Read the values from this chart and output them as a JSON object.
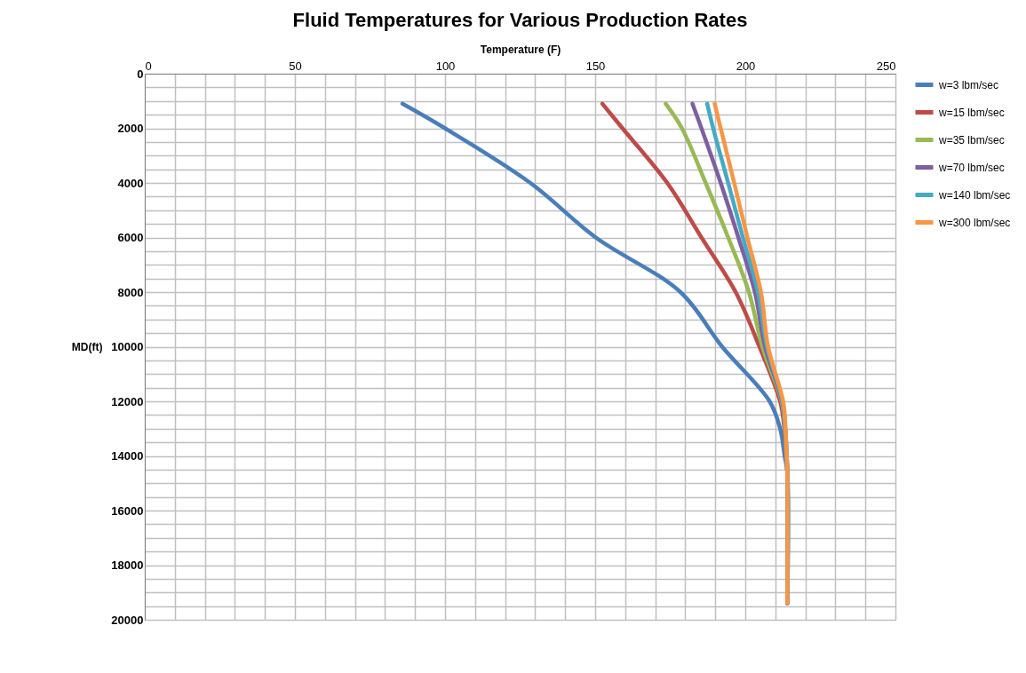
{
  "chart_data": {
    "type": "line",
    "title": "Fluid Temperatures for Various Production Rates",
    "xlabel": "Temperature (F)",
    "ylabel": "MD(ft)",
    "xlim": [
      0,
      250
    ],
    "xticks": [
      0,
      {
        "value": 10,
        "label": null
      },
      {
        "value": 20,
        "label": null
      },
      {
        "value": 30,
        "label": null
      },
      {
        "value": 40,
        "label": null
      },
      50,
      {
        "value": 60,
        "label": null
      },
      {
        "value": 70,
        "label": null
      },
      {
        "value": 80,
        "label": null
      },
      {
        "value": 90,
        "label": null
      },
      100,
      {
        "value": 110,
        "label": null
      },
      {
        "value": 120,
        "label": null
      },
      {
        "value": 130,
        "label": null
      },
      {
        "value": 140,
        "label": null
      },
      150,
      {
        "value": 160,
        "label": null
      },
      {
        "value": 170,
        "label": null
      },
      {
        "value": 180,
        "label": null
      },
      {
        "value": 190,
        "label": null
      },
      200,
      {
        "value": 210,
        "label": null
      },
      {
        "value": 220,
        "label": null
      },
      {
        "value": 230,
        "label": null
      },
      {
        "value": 240,
        "label": null
      },
      250
    ],
    "ylim": [
      20000,
      0
    ],
    "yticks": [
      0,
      {
        "value": 500,
        "label": null
      },
      {
        "value": 1000,
        "label": null
      },
      {
        "value": 1500,
        "label": null
      },
      2000,
      {
        "value": 2500,
        "label": null
      },
      {
        "value": 3000,
        "label": null
      },
      {
        "value": 3500,
        "label": null
      },
      4000,
      {
        "value": 4500,
        "label": null
      },
      {
        "value": 5000,
        "label": null
      },
      {
        "value": 5500,
        "label": null
      },
      6000,
      {
        "value": 6500,
        "label": null
      },
      {
        "value": 7000,
        "label": null
      },
      {
        "value": 7500,
        "label": null
      },
      8000,
      {
        "value": 8500,
        "label": null
      },
      {
        "value": 9000,
        "label": null
      },
      {
        "value": 9500,
        "label": null
      },
      10000,
      {
        "value": 10500,
        "label": null
      },
      {
        "value": 11000,
        "label": null
      },
      {
        "value": 11500,
        "label": null
      },
      12000,
      {
        "value": 12500,
        "label": null
      },
      {
        "value": 13000,
        "label": null
      },
      {
        "value": 13500,
        "label": null
      },
      14000,
      {
        "value": 14500,
        "label": null
      },
      {
        "value": 15000,
        "label": null
      },
      {
        "value": 15500,
        "label": null
      },
      16000,
      {
        "value": 16500,
        "label": null
      },
      {
        "value": 17000,
        "label": null
      },
      {
        "value": 17500,
        "label": null
      },
      18000,
      {
        "value": 18500,
        "label": null
      },
      {
        "value": 19000,
        "label": null
      },
      {
        "value": 19500,
        "label": null
      },
      20000
    ],
    "grid": true,
    "legend": "right",
    "marker": "none",
    "line_style": "solid",
    "series": [
      {
        "name": "w=3 lbm/sec",
        "color": "#4a7ebb",
        "x": [
          85.8,
          100,
          128.4,
          150.2,
          178.4,
          192.3,
          208.1,
          211.6,
          213.1,
          214,
          214
        ],
        "values": [
          1100,
          2000,
          4000,
          6000,
          8000,
          10000,
          12000,
          13000,
          14000,
          14600,
          19400
        ]
      },
      {
        "name": "w=15 lbm/sec",
        "color": "#be4b48",
        "x": [
          152.4,
          159.1,
          174,
          185.4,
          196.8,
          204.7,
          211.6,
          213,
          213.6,
          214,
          214
        ],
        "values": [
          1100,
          2000,
          4000,
          6000,
          8000,
          10000,
          12000,
          13000,
          14000,
          14600,
          19400
        ]
      },
      {
        "name": "w=35 lbm/sec",
        "color": "#98b954",
        "x": [
          173.5,
          178.9,
          186.8,
          194.3,
          201.2,
          205.7,
          212.1,
          213.2,
          213.7,
          214,
          214
        ],
        "values": [
          1100,
          2000,
          4000,
          6000,
          8000,
          10000,
          12000,
          13000,
          14000,
          14600,
          19400
        ]
      },
      {
        "name": "w=70 lbm/sec",
        "color": "#7d60a0",
        "x": [
          182.4,
          185.4,
          191.8,
          197.7,
          203.2,
          206.6,
          212.3,
          213.3,
          213.8,
          214,
          214
        ],
        "values": [
          1100,
          2000,
          4000,
          6000,
          8000,
          10000,
          12000,
          13000,
          14000,
          14600,
          19400
        ]
      },
      {
        "name": "w=140 lbm/sec",
        "color": "#46aac5",
        "x": [
          187.3,
          189.3,
          194.3,
          199.2,
          204.2,
          207.2,
          212.4,
          213.3,
          213.8,
          214,
          214
        ],
        "values": [
          1100,
          2000,
          4000,
          6000,
          8000,
          10000,
          12000,
          13000,
          14000,
          14600,
          19400
        ]
      },
      {
        "name": "w=300 lbm/sec",
        "color": "#f79646",
        "x": [
          189.8,
          191.8,
          196.3,
          200.7,
          205.2,
          207.6,
          212.6,
          213.4,
          213.8,
          214,
          214
        ],
        "values": [
          1100,
          2000,
          4000,
          6000,
          8000,
          10000,
          12000,
          13000,
          14000,
          14600,
          19400
        ]
      }
    ]
  }
}
